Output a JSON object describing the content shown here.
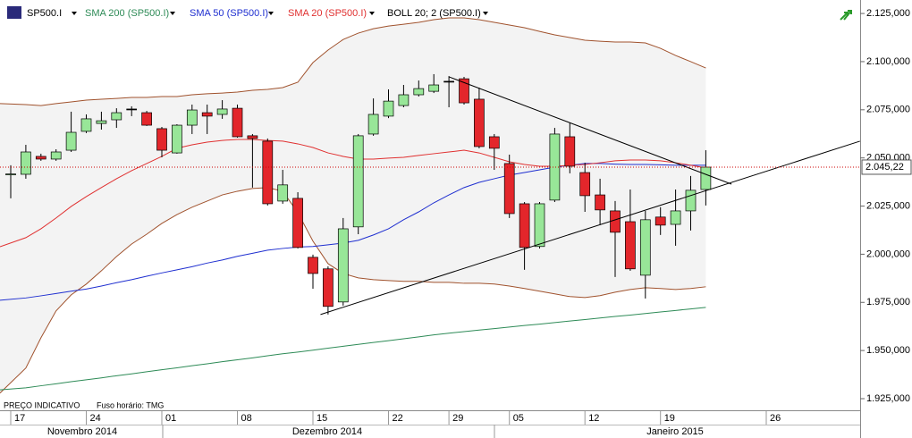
{
  "chart_data": {
    "type": "candlestick",
    "symbol": "SP500.I",
    "categories": [
      "17",
      null,
      null,
      null,
      null,
      "24",
      null,
      null,
      null,
      null,
      "01",
      null,
      null,
      null,
      null,
      "08",
      null,
      null,
      null,
      null,
      "15",
      null,
      null,
      null,
      null,
      "22",
      null,
      null,
      null,
      "29",
      null,
      null,
      null,
      "05",
      null,
      null,
      null,
      null,
      "12",
      null,
      null,
      null,
      null,
      "19",
      null,
      null,
      null,
      null,
      null,
      null,
      "26",
      null,
      null,
      null,
      null,
      null,
      null
    ],
    "months": [
      "Novembro 2014",
      "Dezembro 2014",
      "Janeiro 2015"
    ],
    "open": [
      2041.2,
      2041.5,
      2050.8,
      2049.4,
      2054.0,
      2063.8,
      2067.9,
      2069.8,
      2075.4,
      2073.5,
      2065.2,
      2052.6,
      2067.0,
      2073.5,
      2072.6,
      2075.8,
      2061.5,
      2058.7,
      2027.6,
      2029.0,
      1998.4,
      1992.4,
      1975.2,
      2014.2,
      2062.4,
      2071.7,
      2077.2,
      2082.8,
      2084.6,
      2089.8,
      2091.1,
      2080.5,
      2061.0,
      2047.1,
      2026.2,
      2004.0,
      2028.1,
      2061.0,
      2042.4,
      2030.8,
      2022.5,
      2016.9,
      1989.1,
      2019.3,
      2015.5,
      2022.5,
      2033.6,
      null,
      null,
      null,
      null,
      null,
      null,
      null,
      null,
      null,
      null
    ],
    "high": [
      2046.2,
      2056.8,
      2052.2,
      2054.5,
      2074.0,
      2072.6,
      2074.0,
      2075.8,
      2076.8,
      2074.4,
      2066.1,
      2067.5,
      2077.7,
      2077.7,
      2080.0,
      2077.7,
      2062.4,
      2060.1,
      2043.8,
      2032.2,
      1999.8,
      1993.7,
      2018.8,
      2062.4,
      2080.9,
      2085.6,
      2087.9,
      2090.2,
      2093.5,
      2092.5,
      2092.1,
      2086.5,
      2062.4,
      2051.7,
      2027.1,
      2027.1,
      2065.6,
      2068.4,
      2047.5,
      2039.2,
      2027.6,
      2033.6,
      2022.5,
      2024.4,
      2033.6,
      2040.6,
      2054.0,
      null,
      null,
      null,
      null,
      null,
      null,
      null,
      null,
      null,
      null
    ],
    "low": [
      2029.0,
      2039.2,
      2048.5,
      2048.5,
      2053.1,
      2062.9,
      2064.7,
      2065.6,
      2071.7,
      2066.6,
      2050.3,
      2052.2,
      2062.4,
      2062.4,
      2070.3,
      2060.5,
      2034.6,
      2025.3,
      2026.2,
      2003.0,
      1982.1,
      1968.7,
      1973.3,
      2010.4,
      2061.5,
      2070.7,
      2076.3,
      2081.9,
      2083.7,
      2076.3,
      2077.7,
      2055.0,
      2043.8,
      2018.8,
      1991.9,
      2003.0,
      2027.1,
      2042.0,
      2022.0,
      2015.1,
      1988.2,
      1991.4,
      1977.0,
      2010.0,
      2004.4,
      2012.3,
      2025.3,
      null,
      null,
      null,
      null,
      null,
      null,
      null,
      null,
      null,
      null
    ],
    "close": [
      2041.7,
      2053.1,
      2049.4,
      2053.1,
      2063.3,
      2070.3,
      2069.3,
      2073.5,
      2075.4,
      2067.0,
      2054.0,
      2067.0,
      2074.9,
      2071.7,
      2075.4,
      2061.0,
      2060.1,
      2026.2,
      2036.0,
      2003.5,
      1990.0,
      1972.9,
      2013.2,
      2061.5,
      2072.6,
      2079.5,
      2082.8,
      2086.0,
      2087.9,
      2089.8,
      2078.6,
      2055.9,
      2055.0,
      2021.1,
      2003.5,
      2026.2,
      2062.4,
      2045.7,
      2030.4,
      2023.0,
      2011.4,
      1992.4,
      2017.9,
      2015.1,
      2022.5,
      2033.2,
      2045.22,
      null,
      null,
      null,
      null,
      null,
      null,
      null,
      null,
      null,
      null
    ],
    "up_color": "#98e698",
    "down_color": "#e3262b",
    "series": [
      {
        "name": "SMA 200 (SP500.I)",
        "color": "#2e8b57",
        "values": [
          1929.6,
          1930.6,
          1931.7,
          1932.7,
          1933.8,
          1934.8,
          1935.8,
          1936.9,
          1937.9,
          1939.0,
          1940.0,
          1941.0,
          1942.1,
          1943.1,
          1944.2,
          1945.2,
          1946.2,
          1947.3,
          1948.3,
          1949.2,
          1950.2,
          1951.2,
          1952.2,
          1953.2,
          1954.2,
          1955.1,
          1956.1,
          1957.1,
          1958.1,
          1959.0,
          1959.8,
          1960.6,
          1961.4,
          1962.2,
          1963.0,
          1963.7,
          1964.5,
          1965.3,
          1966.1,
          1966.9,
          1967.7,
          1968.4,
          1969.2,
          1970.0,
          1970.8,
          1971.6,
          1972.4,
          null,
          null,
          null,
          null,
          null,
          null,
          null,
          null,
          null,
          null
        ]
      },
      {
        "name": "SMA 50 (SP500.I)",
        "color": "#1f2fd0",
        "values": [
          1976.1,
          1977.3,
          1978.4,
          1979.6,
          1980.8,
          1981.9,
          1983.5,
          1985.2,
          1986.8,
          1988.6,
          1990.3,
          1991.9,
          1993.5,
          1995.4,
          1997.0,
          1998.9,
          2000.5,
          2002.1,
          2003.0,
          2003.7,
          2004.0,
          2004.9,
          2005.8,
          2007.2,
          2010.0,
          2013.2,
          2017.9,
          2022.0,
          2026.7,
          2030.8,
          2034.6,
          2037.3,
          2039.2,
          2041.1,
          2042.4,
          2043.8,
          2045.2,
          2046.2,
          2047.1,
          2047.1,
          2046.8,
          2046.6,
          2046.6,
          2046.4,
          2046.2,
          2046.2,
          2046.2,
          null,
          null,
          null,
          null,
          null,
          null,
          null,
          null,
          null,
          null
        ]
      },
      {
        "name": "SMA 20 (SP500.I)",
        "color": "#e03030",
        "values": [
          2003.9,
          2008.6,
          2013.2,
          2018.8,
          2024.8,
          2029.9,
          2034.6,
          2039.2,
          2043.4,
          2047.1,
          2050.8,
          2055.0,
          2056.8,
          2058.2,
          2059.1,
          2059.6,
          2059.6,
          2059.1,
          2058.7,
          2057.3,
          2055.4,
          2052.6,
          2050.8,
          2049.4,
          2049.4,
          2049.9,
          2050.3,
          2051.3,
          2052.2,
          2053.1,
          2054.0,
          2052.6,
          2050.3,
          2048.0,
          2046.6,
          2045.7,
          2045.7,
          2046.2,
          2046.6,
          2047.5,
          2048.5,
          2048.9,
          2048.9,
          2048.5,
          2047.5,
          2046.2,
          2044.8,
          null,
          null,
          null,
          null,
          null,
          null,
          null,
          null,
          null,
          null
        ]
      }
    ],
    "bollinger": {
      "name": "BOLL 20; 2 (SP500.I)",
      "color": "#a0522d",
      "upper": [
        2078.2,
        2077.7,
        2077.2,
        2078.2,
        2079.1,
        2080.0,
        2080.5,
        2080.9,
        2081.4,
        2081.4,
        2081.9,
        2081.9,
        2082.8,
        2083.3,
        2083.7,
        2084.2,
        2085.1,
        2085.6,
        2086.5,
        2089.3,
        2099.5,
        2106.0,
        2111.5,
        2114.8,
        2117.1,
        2118.5,
        2119.4,
        2120.4,
        2121.8,
        2122.7,
        2122.7,
        2121.8,
        2120.4,
        2119.0,
        2117.6,
        2115.7,
        2113.9,
        2112.5,
        2111.1,
        2110.6,
        2110.2,
        2110.2,
        2109.7,
        2106.9,
        2103.2,
        2100.0,
        2096.7,
        null,
        null,
        null,
        null,
        null,
        null,
        null,
        null,
        null,
        null
      ],
      "lower": [
        1927.9,
        1940.9,
        1956.6,
        1970.6,
        1978.9,
        1984.5,
        1991.4,
        1998.8,
        2005.3,
        2010.4,
        2016.0,
        2020.6,
        2024.4,
        2027.6,
        2030.8,
        2032.7,
        2034.1,
        2034.6,
        2032.7,
        2021.6,
        2006.8,
        1995.1,
        1990.0,
        1987.7,
        1986.8,
        1986.3,
        1985.9,
        1985.9,
        1985.4,
        1985.4,
        1984.9,
        1984.9,
        1984.5,
        1983.5,
        1982.2,
        1980.8,
        1979.4,
        1978.0,
        1977.5,
        1978.5,
        1980.3,
        1981.7,
        1982.6,
        1982.2,
        1981.7,
        1982.2,
        1983.1,
        null,
        null,
        null,
        null,
        null,
        null,
        null,
        null,
        null,
        null
      ]
    },
    "trendlines": [
      {
        "x": [
          29,
          47.7
        ],
        "y": [
          2092.1,
          2036.4
        ]
      },
      {
        "x": [
          20.5,
          56.2
        ],
        "y": [
          1968.7,
          2058.7
        ]
      }
    ],
    "last_price": {
      "value": 2045.22,
      "label": "2.045,22"
    },
    "ylim": [
      1918.5,
      2132
    ],
    "yticks": [
      {
        "value": 1925,
        "label": "1.925,000"
      },
      {
        "value": 1950,
        "label": "1.950,000"
      },
      {
        "value": 1975,
        "label": "1.975,000"
      },
      {
        "value": 2000,
        "label": "2.000,000"
      },
      {
        "value": 2025,
        "label": "2.025,000"
      },
      {
        "value": 2050,
        "label": "2.050,000"
      },
      {
        "value": 2075,
        "label": "2.075,000"
      },
      {
        "value": 2100,
        "label": "2.100,000"
      },
      {
        "value": 2125,
        "label": "2.125,000"
      }
    ],
    "footer": {
      "note": "PREÇO INDICATIVO",
      "timezone": "Fuso horário: TMG"
    }
  }
}
